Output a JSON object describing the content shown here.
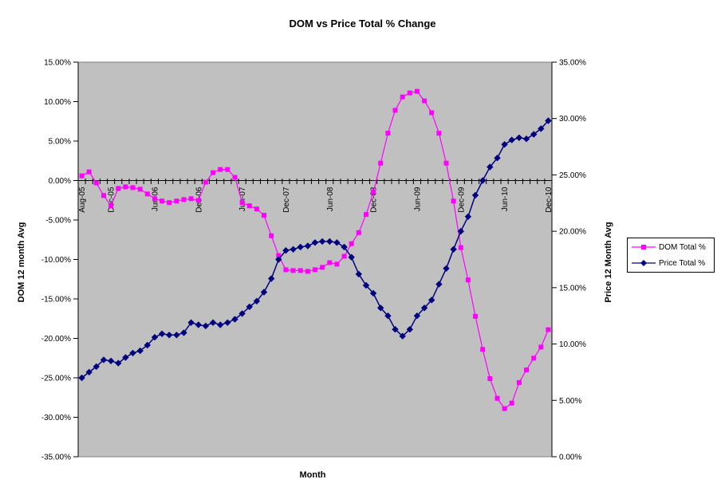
{
  "chart_data": {
    "type": "line",
    "title": "DOM vs Price Total % Change",
    "xlabel": "Month",
    "ylabel_left": "DOM 12 month Avg",
    "ylabel_right": "Price 12 Month Avg",
    "plot_bg": "#c0c0c0",
    "grid": false,
    "legend_position": "right",
    "categories": [
      "Aug-05",
      "Sep-05",
      "Oct-05",
      "Nov-05",
      "Dec-05",
      "Jan-06",
      "Feb-06",
      "Mar-06",
      "Apr-06",
      "May-06",
      "Jun-06",
      "Jul-06",
      "Aug-06",
      "Sep-06",
      "Oct-06",
      "Nov-06",
      "Dec-06",
      "Jan-07",
      "Feb-07",
      "Mar-07",
      "Apr-07",
      "May-07",
      "Jun-07",
      "Jul-07",
      "Aug-07",
      "Sep-07",
      "Oct-07",
      "Nov-07",
      "Dec-07",
      "Jan-08",
      "Feb-08",
      "Mar-08",
      "Apr-08",
      "May-08",
      "Jun-08",
      "Jul-08",
      "Aug-08",
      "Sep-08",
      "Oct-08",
      "Nov-08",
      "Dec-08",
      "Jan-09",
      "Feb-09",
      "Mar-09",
      "Apr-09",
      "May-09",
      "Jun-09",
      "Jul-09",
      "Aug-09",
      "Sep-09",
      "Oct-09",
      "Nov-09",
      "Dec-09",
      "Jan-10",
      "Feb-10",
      "Mar-10",
      "Apr-10",
      "May-10",
      "Jun-10",
      "Jul-10",
      "Aug-10",
      "Sep-10",
      "Oct-10",
      "Nov-10",
      "Dec-10"
    ],
    "x_axis_shown_tick_labels": [
      "Aug-05",
      "Dec-05",
      "Jun-06",
      "Dec-06",
      "Jun-07",
      "Dec-07",
      "Jun-08",
      "Dec-08",
      "Jun-09",
      "Dec-09",
      "Jun-10",
      "Dec-10"
    ],
    "x_axis_shown_tick_indices": [
      0,
      4,
      10,
      16,
      22,
      28,
      34,
      40,
      46,
      52,
      58,
      64
    ],
    "left_axis": {
      "min": -35,
      "max": 15,
      "step": 5,
      "tick_labels": [
        "15.00%",
        "10.00%",
        "5.00%",
        "0.00%",
        "-5.00%",
        "-10.00%",
        "-15.00%",
        "-20.00%",
        "-25.00%",
        "-30.00%",
        "-35.00%"
      ]
    },
    "right_axis": {
      "min": 0,
      "max": 35,
      "step": 5,
      "tick_labels": [
        "35.00%",
        "30.00%",
        "25.00%",
        "20.00%",
        "15.00%",
        "10.00%",
        "5.00%",
        "0.00%"
      ]
    },
    "series": [
      {
        "name": "DOM Total %",
        "axis": "left",
        "color": "#ff00ff",
        "marker": "square",
        "values": [
          0.6,
          1.1,
          -0.3,
          -1.9,
          -3.2,
          -1.0,
          -0.8,
          -0.9,
          -1.1,
          -1.7,
          -2.3,
          -2.6,
          -2.8,
          -2.6,
          -2.4,
          -2.3,
          -2.5,
          -0.2,
          1.0,
          1.4,
          1.4,
          0.4,
          -2.8,
          -3.2,
          -3.6,
          -4.4,
          -7.0,
          -9.5,
          -11.3,
          -11.4,
          -11.4,
          -11.5,
          -11.3,
          -11.0,
          -10.4,
          -10.6,
          -9.6,
          -8.0,
          -6.6,
          -4.3,
          -1.5,
          2.2,
          6.0,
          8.9,
          10.6,
          11.1,
          11.3,
          10.1,
          8.6,
          6.0,
          2.2,
          -2.6,
          -8.5,
          -12.6,
          -17.2,
          -21.4,
          -25.1,
          -27.6,
          -28.9,
          -28.2,
          -25.6,
          -24.0,
          -22.5,
          -21.1,
          -18.9
        ]
      },
      {
        "name": "Price Total %",
        "axis": "right",
        "color": "#000080",
        "marker": "diamond",
        "values": [
          7.0,
          7.5,
          8.0,
          8.6,
          8.5,
          8.3,
          8.8,
          9.2,
          9.4,
          9.9,
          10.6,
          10.9,
          10.8,
          10.8,
          11.0,
          11.9,
          11.7,
          11.6,
          11.9,
          11.7,
          11.9,
          12.2,
          12.7,
          13.3,
          13.8,
          14.6,
          15.8,
          17.5,
          18.3,
          18.4,
          18.6,
          18.7,
          19.0,
          19.1,
          19.1,
          19.0,
          18.6,
          17.7,
          16.2,
          15.2,
          14.5,
          13.2,
          12.5,
          11.3,
          10.7,
          11.3,
          12.5,
          13.2,
          13.9,
          15.3,
          16.7,
          18.4,
          20.0,
          21.3,
          23.2,
          24.5,
          25.7,
          26.5,
          27.7,
          28.1,
          28.3,
          28.2,
          28.6,
          29.1,
          29.8
        ]
      }
    ]
  }
}
